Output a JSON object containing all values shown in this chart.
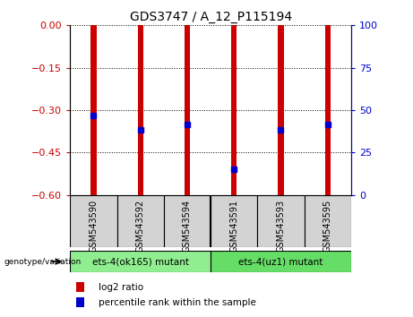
{
  "title": "GDS3747 / A_12_P115194",
  "samples": [
    "GSM543590",
    "GSM543592",
    "GSM543594",
    "GSM543591",
    "GSM543593",
    "GSM543595"
  ],
  "log2_ratios": [
    -0.6,
    -0.6,
    -0.6,
    -0.6,
    -0.6,
    -0.6
  ],
  "bar_tops": [
    0.0,
    0.0,
    0.0,
    0.0,
    0.0,
    0.0
  ],
  "percentile_y": [
    -0.32,
    -0.37,
    -0.35,
    -0.51,
    -0.37,
    -0.35
  ],
  "yticks_left": [
    0,
    -0.15,
    -0.3,
    -0.45,
    -0.6
  ],
  "yticks_right": [
    100,
    75,
    50,
    25,
    0
  ],
  "bar_color": "#cc0000",
  "dot_color": "#0000cc",
  "group1_label": "ets-4(ok165) mutant",
  "group2_label": "ets-4(uz1) mutant",
  "group1_color": "#90ee90",
  "group2_color": "#66dd66",
  "sample_bg_color": "#d3d3d3",
  "left_axis_color": "#cc0000",
  "right_axis_color": "#0000cc",
  "grid_color": "#000000",
  "bar_width": 0.12
}
